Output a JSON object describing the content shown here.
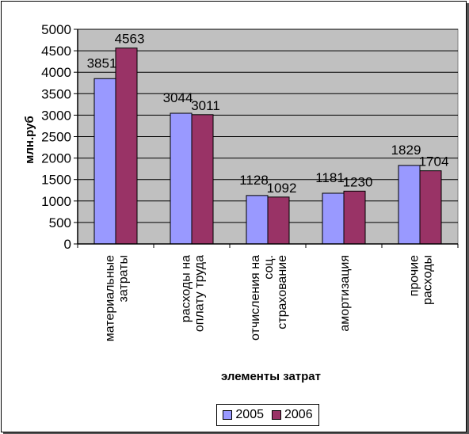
{
  "chart_data": {
    "type": "bar",
    "categories": [
      [
        "материальные",
        "затраты"
      ],
      [
        "расходы на",
        "оплату труда"
      ],
      [
        "отчисления на",
        "соц.",
        "страхование"
      ],
      [
        "амортизация"
      ],
      [
        "прочие",
        "расходы"
      ]
    ],
    "series": [
      {
        "name": "2005",
        "values": [
          3851,
          3044,
          1128,
          1181,
          1829
        ],
        "color": "#9999ff"
      },
      {
        "name": "2006",
        "values": [
          4563,
          3011,
          1092,
          1230,
          1704
        ],
        "color": "#993366"
      }
    ],
    "title": "",
    "xlabel": "элементы затрат",
    "ylabel": "млн.руб",
    "ylim": [
      0,
      5000
    ],
    "yticks": [
      0,
      500,
      1000,
      1500,
      2000,
      2500,
      3000,
      3500,
      4000,
      4500,
      5000
    ],
    "grid": true,
    "legend_position": "bottom",
    "plot_background": "#c0c0c0"
  },
  "legend": {
    "items": [
      {
        "label": "2005",
        "color": "#9999ff"
      },
      {
        "label": "2006",
        "color": "#993366"
      }
    ]
  }
}
